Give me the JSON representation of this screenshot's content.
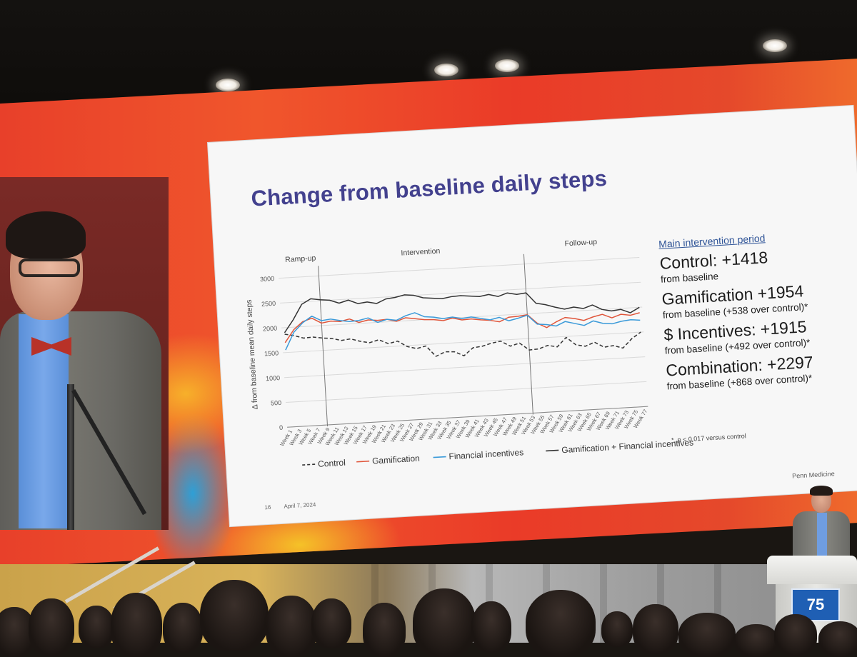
{
  "slide": {
    "title": "Change from baseline daily steps",
    "page_number": "16",
    "date": "April 7, 2024",
    "organization": "Penn Medicine"
  },
  "chart_data": {
    "type": "line",
    "title": "",
    "ylabel": "Δ from baseline mean daily steps",
    "xlabel": "",
    "ylim": [
      0,
      3000
    ],
    "yticks": [
      0,
      500,
      1000,
      1500,
      2000,
      2500,
      3000
    ],
    "grid": true,
    "legend_position": "bottom",
    "period_labels": [
      "Ramp-up",
      "Intervention",
      "Follow-up"
    ],
    "x": [
      "Week 1",
      "Week 3",
      "Week 5",
      "Week 7",
      "Week 9",
      "Week 11",
      "Week 13",
      "Week 15",
      "Week 17",
      "Week 19",
      "Week 21",
      "Week 23",
      "Week 25",
      "Week 27",
      "Week 29",
      "Week 31",
      "Week 33",
      "Week 35",
      "Week 37",
      "Week 39",
      "Week 41",
      "Week 43",
      "Week 45",
      "Week 47",
      "Week 49",
      "Week 51",
      "Week 53",
      "Week 55",
      "Week 57",
      "Week 59",
      "Week 61",
      "Week 63",
      "Week 65",
      "Week 67",
      "Week 69",
      "Week 71",
      "Week 73",
      "Week 75",
      "Week 77"
    ],
    "series": [
      {
        "name": "Control",
        "style": "dashed",
        "color": "#333333",
        "values": [
          1870,
          1830,
          1770,
          1780,
          1750,
          1730,
          1680,
          1700,
          1640,
          1600,
          1650,
          1560,
          1600,
          1480,
          1430,
          1470,
          1250,
          1330,
          1320,
          1230,
          1380,
          1400,
          1450,
          1480,
          1370,
          1420,
          1270,
          1280,
          1340,
          1300,
          1480,
          1320,
          1280,
          1350,
          1240,
          1260,
          1200,
          1380,
          1500
        ]
      },
      {
        "name": "Gamification",
        "style": "solid",
        "color": "#e0553a",
        "values": [
          1700,
          1950,
          2100,
          2160,
          2050,
          2080,
          2060,
          2100,
          2020,
          2060,
          2040,
          2050,
          2000,
          2060,
          2030,
          2000,
          1990,
          1960,
          2000,
          1950,
          1960,
          1930,
          1910,
          1870,
          1950,
          1960,
          1980,
          1800,
          1700,
          1800,
          1880,
          1850,
          1800,
          1860,
          1900,
          1820,
          1880,
          1850,
          1890
        ]
      },
      {
        "name": "Financial incentives",
        "style": "solid",
        "color": "#3a9ad9",
        "values": [
          1550,
          1900,
          2080,
          2200,
          2100,
          2120,
          2080,
          2050,
          2060,
          2100,
          2000,
          2050,
          2020,
          2100,
          2150,
          2060,
          2040,
          2000,
          2020,
          1980,
          2000,
          1960,
          1920,
          1960,
          1880,
          1920,
          1970,
          1780,
          1760,
          1720,
          1800,
          1750,
          1700,
          1780,
          1720,
          1700,
          1740,
          1760,
          1740
        ]
      },
      {
        "name": "Gamification + Financial incentives",
        "style": "solid",
        "color": "#333333",
        "values": [
          1900,
          2150,
          2450,
          2550,
          2520,
          2500,
          2430,
          2480,
          2400,
          2420,
          2380,
          2460,
          2480,
          2520,
          2500,
          2440,
          2420,
          2400,
          2430,
          2440,
          2420,
          2400,
          2430,
          2380,
          2440,
          2400,
          2420,
          2200,
          2160,
          2100,
          2050,
          2080,
          2040,
          2100,
          2000,
          1960,
          1980,
          1900,
          2000
        ]
      }
    ]
  },
  "sidebar": {
    "heading": "Main intervention period",
    "stats": [
      {
        "label": "Control: +1418",
        "sub": "from baseline"
      },
      {
        "label": "Gamification +1954",
        "sub": "from baseline (+538 over control)*"
      },
      {
        "label": "$ Incentives: +1915",
        "sub": "from baseline (+492 over control)*"
      },
      {
        "label": "Combination: +2297",
        "sub": "from baseline (+868 over control)*"
      }
    ],
    "footnote": "*, p < 0.017 versus control"
  },
  "podium": {
    "logo_text": "75"
  },
  "colors": {
    "title": "#43418e",
    "heading": "#2f5497",
    "led_wall": "#e8402a"
  }
}
